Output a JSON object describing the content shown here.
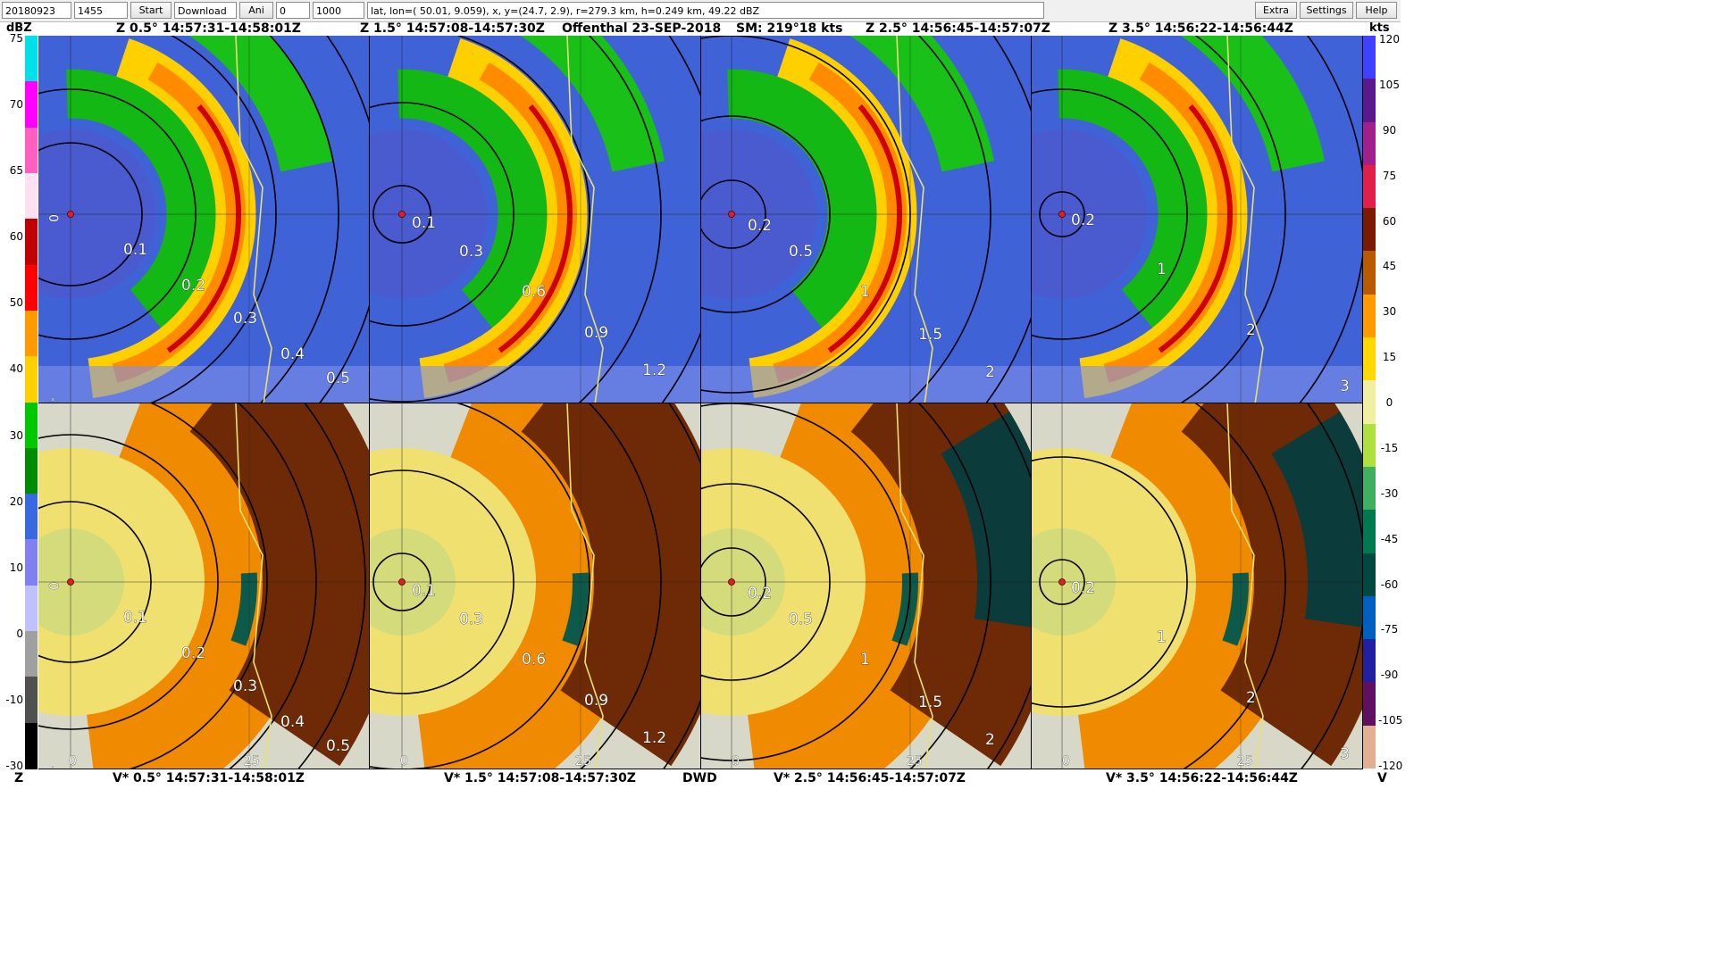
{
  "toolbar": {
    "date_value": "20180923",
    "time_value": "1455",
    "start_label": "Start",
    "download_value": "Download",
    "ani_label": "Ani",
    "field_a_value": "0",
    "field_b_value": "1000",
    "info_value": "lat, lon=( 50.01, 9.059),  x, y=(24.7, 2.9),  r=279.3 km,  h=0.249 km, 49.22 dBZ",
    "extra_label": "Extra",
    "settings_label": "Settings",
    "help_label": "Help"
  },
  "header": {
    "left_unit": "dBZ",
    "z05": "Z 0.5°  14:57:31-14:58:01Z",
    "z15": "Z 1.5°  14:57:08-14:57:30Z",
    "station": "Offenthal  23-SEP-2018",
    "storm_motion": "SM: 219°18 kts",
    "z25": "Z 2.5°  14:56:45-14:57:07Z",
    "z35": "Z 3.5°  14:56:22-14:56:44Z",
    "right_unit": "kts"
  },
  "footer": {
    "left_unit": "Z",
    "v05": "V* 0.5°  14:57:31-14:58:01Z",
    "v15": "V* 1.5°  14:57:08-14:57:30Z",
    "agency": "DWD",
    "v25": "V* 2.5°  14:56:45-14:57:07Z",
    "v35": "V* 3.5°  14:56:22-14:56:44Z",
    "right_unit": "V"
  },
  "reflectivity_scale": {
    "ticks": [
      "75",
      "70",
      "65",
      "60",
      "50",
      "40",
      "30",
      "20",
      "10",
      "0",
      "-10",
      "-30"
    ],
    "colors": [
      "#00e0e8",
      "#ff00ff",
      "#ff60c0",
      "#ffe0f0",
      "#c00000",
      "#ff0000",
      "#ff9a00",
      "#ffd000",
      "#00c800",
      "#008c00",
      "#3a68e0",
      "#8080f0",
      "#c0c0ff",
      "#a0a0a0",
      "#505050",
      "#000000"
    ]
  },
  "velocity_scale": {
    "ticks": [
      "120",
      "105",
      "90",
      "75",
      "60",
      "45",
      "30",
      "15",
      "0",
      "-15",
      "-30",
      "-45",
      "-60",
      "-75",
      "-90",
      "-105",
      "-120"
    ],
    "colors": [
      "#4040ff",
      "#5a1a8c",
      "#a0208c",
      "#e0204a",
      "#7a1a00",
      "#b85a00",
      "#ff9a00",
      "#ffd800",
      "#f0f0a0",
      "#b0e040",
      "#40b060",
      "#007850",
      "#004840",
      "#0060c0",
      "#2020a0",
      "#601060",
      "#e0b090"
    ]
  },
  "panels": [
    {
      "id": "z05",
      "product": "Z",
      "inner_labels": [
        "0.1",
        "0.2",
        "0.3",
        "0.4",
        "0.5"
      ],
      "axis_labels": [
        "0",
        "-25"
      ]
    },
    {
      "id": "z15",
      "product": "Z",
      "inner_labels": [
        "0.1",
        "0.3",
        "0.6",
        "0.9",
        "1.2"
      ],
      "axis_labels": []
    },
    {
      "id": "z25",
      "product": "Z",
      "inner_labels": [
        "0.2",
        "0.5",
        "1",
        "1.5",
        "2"
      ],
      "axis_labels": []
    },
    {
      "id": "z35",
      "product": "Z",
      "inner_labels": [
        "0.2",
        "1",
        "2",
        "3"
      ],
      "axis_labels": []
    },
    {
      "id": "v05",
      "product": "V",
      "inner_labels": [
        "0.1",
        "0.2",
        "0.3",
        "0.4",
        "0.5"
      ],
      "axis_labels": [
        "0",
        "-25",
        "0",
        "25"
      ]
    },
    {
      "id": "v15",
      "product": "V",
      "inner_labels": [
        "0.1",
        "0.3",
        "0.6",
        "0.9",
        "1.2"
      ],
      "axis_labels": [
        "0",
        "25"
      ]
    },
    {
      "id": "v25",
      "product": "V",
      "inner_labels": [
        "0.2",
        "0.5",
        "1",
        "1.5",
        "2"
      ],
      "axis_labels": [
        "0",
        "25"
      ]
    },
    {
      "id": "v35",
      "product": "V",
      "inner_labels": [
        "0.2",
        "1",
        "2",
        "3"
      ],
      "axis_labels": [
        "0",
        "25"
      ]
    }
  ]
}
